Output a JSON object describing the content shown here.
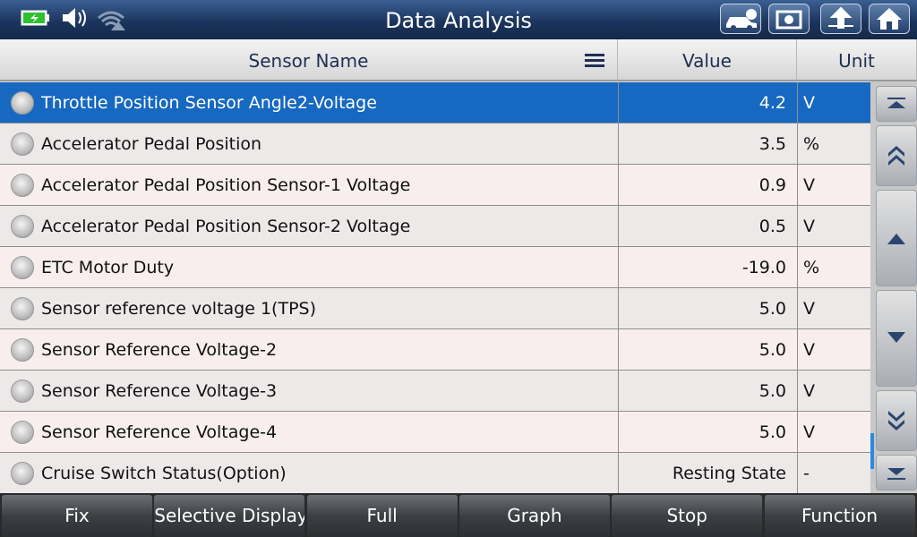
{
  "header": {
    "title": "Data Analysis"
  },
  "table": {
    "columns": [
      "Sensor Name",
      "Value",
      "Unit"
    ],
    "rows": [
      [
        "Throttle Position Sensor Angle2-Voltage",
        "4.2",
        "V"
      ],
      [
        "Accelerator Pedal Position",
        "3.5",
        "%"
      ],
      [
        "Accelerator Pedal Position Sensor-1 Voltage",
        "0.9",
        "V"
      ],
      [
        "Accelerator Pedal Position Sensor-2 Voltage",
        "0.5",
        "V"
      ],
      [
        "ETC Motor Duty",
        "-19.0",
        "%"
      ],
      [
        "Sensor reference voltage 1(TPS)",
        "5.0",
        "V"
      ],
      [
        "Sensor Reference Voltage-2",
        "5.0",
        "V"
      ],
      [
        "Sensor Reference Voltage-3",
        "5.0",
        "V"
      ],
      [
        "Sensor Reference Voltage-4",
        "5.0",
        "V"
      ],
      [
        "Cruise Switch Status(Option)",
        "Resting State",
        "-"
      ]
    ]
  },
  "buttons": [
    "Fix",
    "Selective Display",
    "Full",
    "Graph",
    "Stop",
    "Function"
  ]
}
